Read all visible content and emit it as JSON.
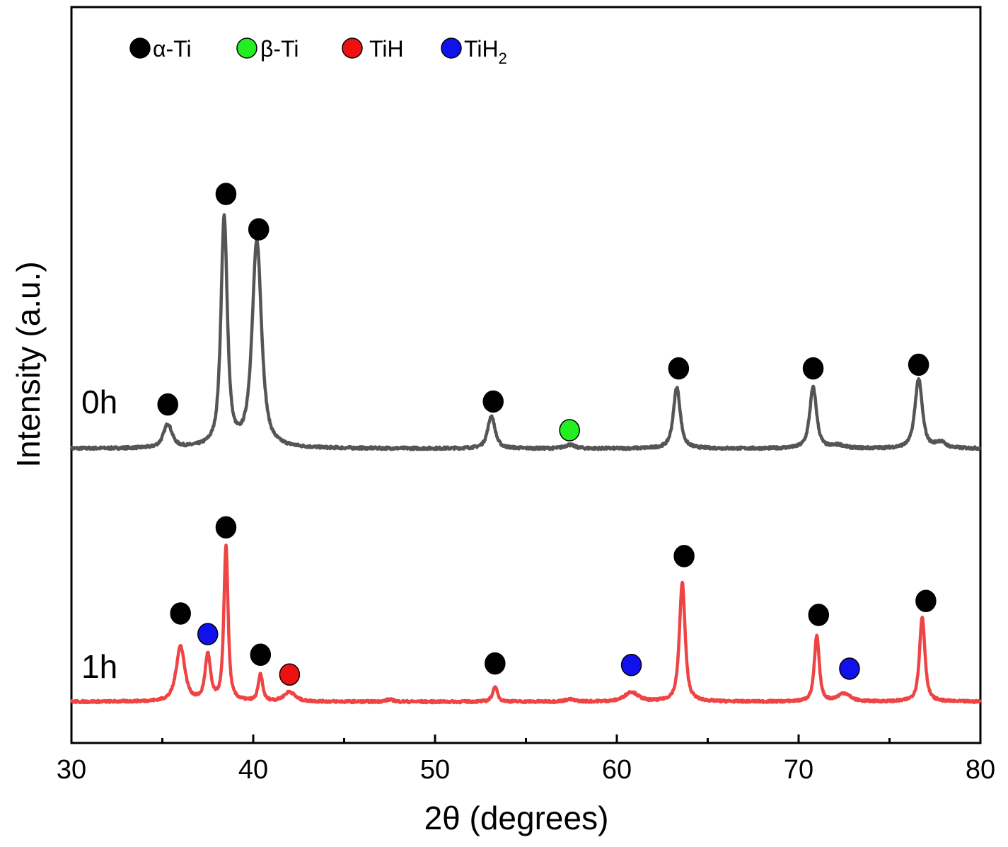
{
  "chart_data": {
    "type": "line",
    "title": "",
    "xlabel": "2θ (degrees)",
    "ylabel": "Intensity (a.u.)",
    "xlim": [
      30,
      80
    ],
    "xticks": [
      30,
      40,
      50,
      60,
      70,
      80
    ],
    "xticks_minor": [
      35,
      45,
      55,
      65,
      75
    ],
    "ylim": [
      0,
      100
    ],
    "grid": false,
    "legend_position": "top-left",
    "phases": [
      {
        "key": "alpha",
        "label": "α-Ti",
        "color": "#000000"
      },
      {
        "key": "beta",
        "label": "β-Ti",
        "color": "#22ee22"
      },
      {
        "key": "tih",
        "label": "TiH",
        "color": "#ee1111"
      },
      {
        "key": "tih2",
        "label": "TiH",
        "subscript": "2",
        "color": "#1111ee"
      }
    ],
    "series": [
      {
        "name": "0h",
        "color": "#555555",
        "baseline": 40,
        "noise": 0.35,
        "peaks": [
          {
            "x": 35.3,
            "height": 3.2,
            "width": 0.35
          },
          {
            "x": 38.4,
            "height": 31.0,
            "width": 0.26
          },
          {
            "x": 40.2,
            "height": 28.0,
            "width": 0.38
          },
          {
            "x": 53.1,
            "height": 4.4,
            "width": 0.3
          },
          {
            "x": 57.4,
            "height": 0.5,
            "width": 0.4
          },
          {
            "x": 63.3,
            "height": 8.3,
            "width": 0.28
          },
          {
            "x": 70.8,
            "height": 8.3,
            "width": 0.28
          },
          {
            "x": 76.6,
            "height": 9.4,
            "width": 0.3
          },
          {
            "x": 72.2,
            "height": 0.4,
            "width": 0.5
          },
          {
            "x": 77.8,
            "height": 0.8,
            "width": 0.4
          }
        ],
        "markers": [
          {
            "x": 35.3,
            "y": 46.0,
            "phase": "alpha"
          },
          {
            "x": 38.5,
            "y": 74.6,
            "phase": "alpha"
          },
          {
            "x": 40.3,
            "y": 69.8,
            "phase": "alpha"
          },
          {
            "x": 53.2,
            "y": 46.4,
            "phase": "alpha"
          },
          {
            "x": 57.4,
            "y": 42.5,
            "phase": "beta"
          },
          {
            "x": 63.4,
            "y": 50.9,
            "phase": "alpha"
          },
          {
            "x": 70.8,
            "y": 50.9,
            "phase": "alpha"
          },
          {
            "x": 76.6,
            "y": 51.4,
            "phase": "alpha"
          }
        ]
      },
      {
        "name": "1h",
        "color": "#ee4444",
        "baseline": 5.6,
        "noise": 0.3,
        "peaks": [
          {
            "x": 36.0,
            "height": 7.5,
            "width": 0.35
          },
          {
            "x": 37.5,
            "height": 6.2,
            "width": 0.22
          },
          {
            "x": 38.5,
            "height": 21.0,
            "width": 0.17
          },
          {
            "x": 40.4,
            "height": 3.6,
            "width": 0.18
          },
          {
            "x": 42.0,
            "height": 1.3,
            "width": 0.45
          },
          {
            "x": 47.5,
            "height": 0.3,
            "width": 0.3
          },
          {
            "x": 53.3,
            "height": 2.0,
            "width": 0.2
          },
          {
            "x": 57.4,
            "height": 0.3,
            "width": 0.4
          },
          {
            "x": 60.8,
            "height": 1.3,
            "width": 0.55
          },
          {
            "x": 63.6,
            "height": 16.2,
            "width": 0.23
          },
          {
            "x": 71.0,
            "height": 8.9,
            "width": 0.2
          },
          {
            "x": 72.5,
            "height": 1.1,
            "width": 0.5
          },
          {
            "x": 76.8,
            "height": 11.5,
            "width": 0.22
          }
        ],
        "markers": [
          {
            "x": 36.0,
            "y": 17.6,
            "phase": "alpha"
          },
          {
            "x": 37.5,
            "y": 14.8,
            "phase": "tih2"
          },
          {
            "x": 38.5,
            "y": 29.3,
            "phase": "alpha"
          },
          {
            "x": 40.4,
            "y": 12.0,
            "phase": "alpha"
          },
          {
            "x": 42.0,
            "y": 9.3,
            "phase": "tih"
          },
          {
            "x": 53.3,
            "y": 10.8,
            "phase": "alpha"
          },
          {
            "x": 60.8,
            "y": 10.6,
            "phase": "tih2"
          },
          {
            "x": 63.7,
            "y": 25.4,
            "phase": "alpha"
          },
          {
            "x": 71.1,
            "y": 17.4,
            "phase": "alpha"
          },
          {
            "x": 72.8,
            "y": 10.1,
            "phase": "tih2"
          },
          {
            "x": 77.0,
            "y": 19.3,
            "phase": "alpha"
          }
        ]
      }
    ]
  }
}
